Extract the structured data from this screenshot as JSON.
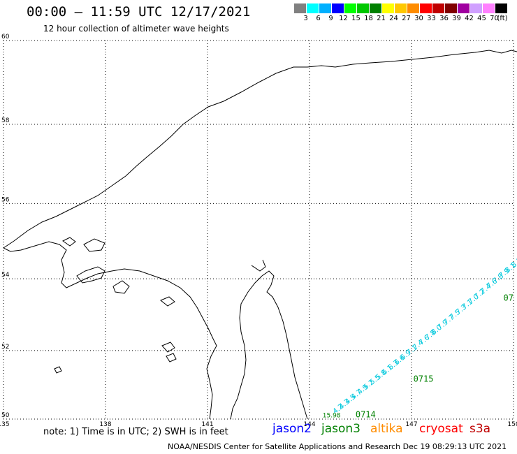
{
  "title": "00:00 – 11:59 UTC 12/17/2021",
  "subtitle": "12 hour collection of altimeter wave heights",
  "legend": {
    "unit": "(ft)",
    "swatches": [
      {
        "color": "#808080",
        "label": "3"
      },
      {
        "color": "#00ffff",
        "label": "6"
      },
      {
        "color": "#00b0ff",
        "label": "9"
      },
      {
        "color": "#0000ff",
        "label": "12"
      },
      {
        "color": "#00ff00",
        "label": "15"
      },
      {
        "color": "#00c800",
        "label": "18"
      },
      {
        "color": "#008000",
        "label": "21"
      },
      {
        "color": "#ffff00",
        "label": "24"
      },
      {
        "color": "#ffc800",
        "label": "27"
      },
      {
        "color": "#ff8c00",
        "label": "30"
      },
      {
        "color": "#ff0000",
        "label": "33"
      },
      {
        "color": "#c00000",
        "label": "36"
      },
      {
        "color": "#800000",
        "label": "39"
      },
      {
        "color": "#a000a0",
        "label": "42"
      },
      {
        "color": "#d0a0ff",
        "label": "45"
      },
      {
        "color": "#ff80ff",
        "label": "70"
      },
      {
        "color": "#000000",
        "label": ""
      }
    ]
  },
  "map": {
    "lon_range": [
      135,
      150
    ],
    "lat_range": [
      50,
      60
    ],
    "lon_ticks": [
      "135",
      "138",
      "141",
      "144",
      "147",
      "150"
    ],
    "lat_ticks": [
      "50",
      "52",
      "54",
      "56",
      "58",
      "60"
    ],
    "track_times": [
      {
        "label": "0714",
        "lon": 145.65,
        "lat": 50.05
      },
      {
        "label": "0715",
        "lon": 147.35,
        "lat": 51.1
      },
      {
        "label": "07",
        "lon": 149.85,
        "lat": 53.4
      }
    ],
    "track_start_label": {
      "label": "15.98",
      "lon": 144.65,
      "lat": 50.05
    },
    "track_values": [
      "4.2",
      "4.3",
      "4.5",
      "4.7",
      "4.9",
      "5.2",
      "5.5",
      "5.8",
      "6.1",
      "6.3",
      "6.6",
      "6.9",
      "7.1",
      "7.4",
      "7.6",
      "7.8",
      "8.0",
      "7.9",
      "7.7",
      "7.5",
      "7.3",
      "7.1",
      "7.0",
      "7.2",
      "7.4",
      "7.6",
      "7.8",
      "7.9",
      "8.1",
      "8.3"
    ]
  },
  "note": "note: 1) Time is in UTC; 2) SWH is in feet",
  "satellites": [
    {
      "name": "jason2",
      "color": "#0000ff"
    },
    {
      "name": "jason3",
      "color": "#008000"
    },
    {
      "name": "altika",
      "color": "#ff8c00"
    },
    {
      "name": "cryosat",
      "color": "#ff0000"
    },
    {
      "name": "s3a",
      "color": "#c00000"
    }
  ],
  "credit": "NOAA/NESDIS Center for Satellite Applications and Research    Dec 19 08:29:13 UTC 2021"
}
